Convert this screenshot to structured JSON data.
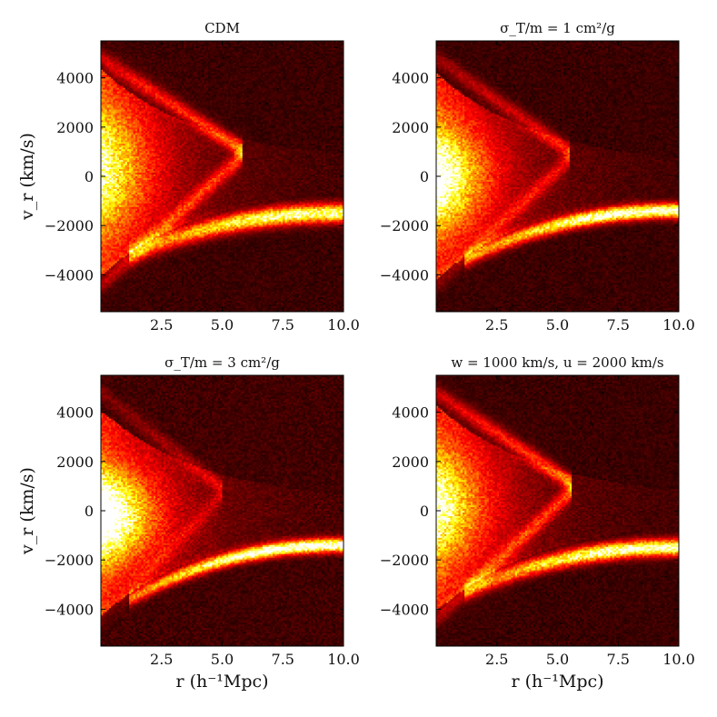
{
  "chart_data": [
    {
      "type": "heatmap",
      "title": "CDM",
      "xlabel": "",
      "ylabel": "v_r (km/s)",
      "xlim": [
        0,
        10
      ],
      "ylim": [
        -5500,
        5500
      ],
      "x_ticks": [
        {
          "value": 2.5,
          "label": "2.5"
        },
        {
          "value": 5.0,
          "label": "5.0"
        },
        {
          "value": 7.5,
          "label": "7.5"
        },
        {
          "value": 10.0,
          "label": "10.0"
        }
      ],
      "y_ticks": [
        {
          "value": 4000,
          "label": "4000"
        },
        {
          "value": 2000,
          "label": "2000"
        },
        {
          "value": 0,
          "label": "0"
        },
        {
          "value": -2000,
          "label": "−2000"
        },
        {
          "value": -4000,
          "label": "−4000"
        }
      ],
      "features": {
        "stream": {
          "v_inner": -3200,
          "v_outer": -1500,
          "width": 380,
          "strength": 0.85
        },
        "core": {
          "v_center": 300,
          "width": 2000,
          "strength": 0.55
        },
        "caustic": {
          "apex_r": 5.8,
          "apex_v": 1100,
          "strength": 0.45
        },
        "background": 0.07
      },
      "colormap": "hot"
    },
    {
      "type": "heatmap",
      "title": "σ_T/m = 1 cm²/g",
      "xlabel": "",
      "ylabel": "",
      "xlim": [
        0,
        10
      ],
      "ylim": [
        -5500,
        5500
      ],
      "x_ticks": [
        {
          "value": 2.5,
          "label": "2.5"
        },
        {
          "value": 5.0,
          "label": "5.0"
        },
        {
          "value": 7.5,
          "label": "7.5"
        },
        {
          "value": 10.0,
          "label": "10.0"
        }
      ],
      "y_ticks": [
        {
          "value": 4000,
          "label": "4000"
        },
        {
          "value": 2000,
          "label": "2000"
        },
        {
          "value": 0,
          "label": "0"
        },
        {
          "value": -2000,
          "label": "−2000"
        },
        {
          "value": -4000,
          "label": "−4000"
        }
      ],
      "features": {
        "stream": {
          "v_inner": -3400,
          "v_outer": -1400,
          "width": 300,
          "strength": 0.95
        },
        "core": {
          "v_center": 0,
          "width": 1600,
          "strength": 0.75
        },
        "caustic": {
          "apex_r": 5.5,
          "apex_v": 1000,
          "strength": 0.3
        },
        "background": 0.07
      },
      "colormap": "hot"
    },
    {
      "type": "heatmap",
      "title": "σ_T/m = 3 cm²/g",
      "xlabel": "r (h⁻¹Mpc)",
      "ylabel": "v_r (km/s)",
      "xlim": [
        0,
        10
      ],
      "ylim": [
        -5500,
        5500
      ],
      "x_ticks": [
        {
          "value": 2.5,
          "label": "2.5"
        },
        {
          "value": 5.0,
          "label": "5.0"
        },
        {
          "value": 7.5,
          "label": "7.5"
        },
        {
          "value": 10.0,
          "label": "10.0"
        }
      ],
      "y_ticks": [
        {
          "value": 4000,
          "label": "4000"
        },
        {
          "value": 2000,
          "label": "2000"
        },
        {
          "value": 0,
          "label": "0"
        },
        {
          "value": -2000,
          "label": "−2000"
        },
        {
          "value": -4000,
          "label": "−4000"
        }
      ],
      "features": {
        "stream": {
          "v_inner": -3600,
          "v_outer": -1400,
          "width": 280,
          "strength": 1.0
        },
        "core": {
          "v_center": -200,
          "width": 1400,
          "strength": 0.9
        },
        "caustic": {
          "apex_r": 5.0,
          "apex_v": 900,
          "strength": 0.18
        },
        "background": 0.08
      },
      "colormap": "hot"
    },
    {
      "type": "heatmap",
      "title": "w = 1000 km/s, u = 2000 km/s",
      "xlabel": "r (h⁻¹Mpc)",
      "ylabel": "",
      "xlim": [
        0,
        10
      ],
      "ylim": [
        -5500,
        5500
      ],
      "x_ticks": [
        {
          "value": 2.5,
          "label": "2.5"
        },
        {
          "value": 5.0,
          "label": "5.0"
        },
        {
          "value": 7.5,
          "label": "7.5"
        },
        {
          "value": 10.0,
          "label": "10.0"
        }
      ],
      "y_ticks": [
        {
          "value": 4000,
          "label": "4000"
        },
        {
          "value": 2000,
          "label": "2000"
        },
        {
          "value": 0,
          "label": "0"
        },
        {
          "value": -2000,
          "label": "−2000"
        },
        {
          "value": -4000,
          "label": "−4000"
        }
      ],
      "features": {
        "stream": {
          "v_inner": -3300,
          "v_outer": -1500,
          "width": 340,
          "strength": 0.9
        },
        "core": {
          "v_center": 200,
          "width": 1800,
          "strength": 0.6
        },
        "caustic": {
          "apex_r": 5.6,
          "apex_v": 1100,
          "strength": 0.45
        },
        "background": 0.07
      },
      "colormap": "hot"
    }
  ]
}
